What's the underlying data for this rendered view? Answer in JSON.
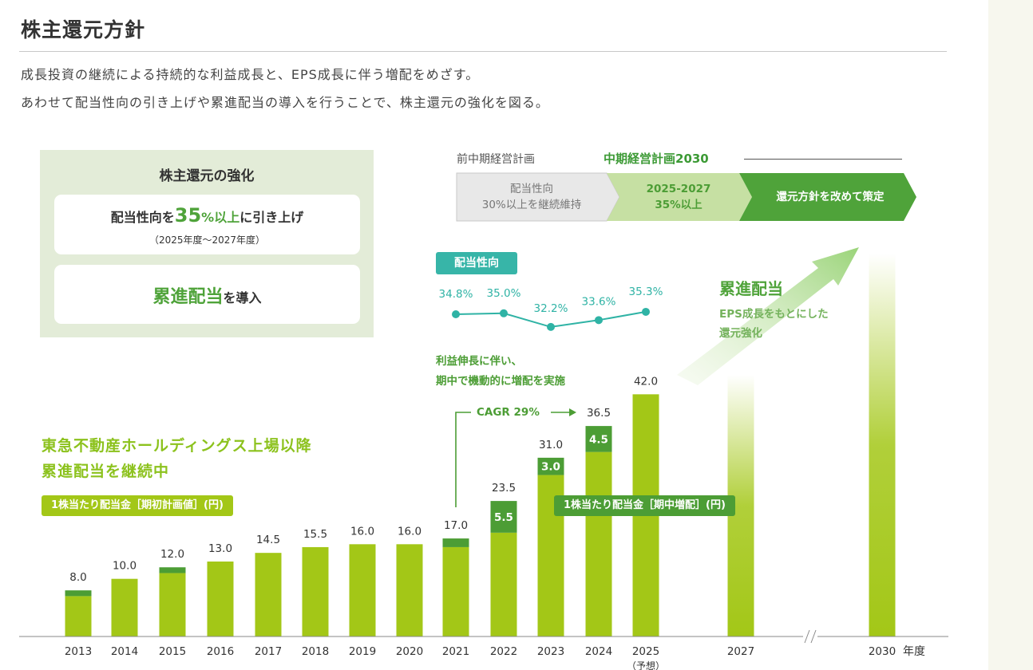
{
  "page": {
    "title": "株主還元方針",
    "lead_line1": "成長投資の継続による持続的な利益成長と、EPS成長に伴う増配をめざす。",
    "lead_line2": "あわせて配当性向の引き上げや累進配当の導入を行うことで、株主還元の強化を図る。"
  },
  "policy_box": {
    "title": "株主還元の強化",
    "card1_prefix": "配当性向を",
    "card1_value": "35",
    "card1_unit": "%以上",
    "card1_suffix": "に引き上げ",
    "card1_period": "（2025年度～2027年度）",
    "card2_highlight": "累進配当",
    "card2_suffix": "を導入"
  },
  "plans": {
    "previous_label": "前中期経営計画",
    "new_label": "中期経営計画2030",
    "step1_line1": "配当性向",
    "step1_line2": "30%以上を継続維持",
    "step2_line1": "2025-2027",
    "step2_line2": "35%以上",
    "step3_text": "還元方針を改めて策定"
  },
  "annotations": {
    "headline_line1": "東急不動産ホールディングス上場以降",
    "headline_line2": "累進配当を継続中",
    "legend_initial": "1株当たり配当金［期初計画値］(円)",
    "legend_mid": "1株当たり配当金［期中増配］(円)",
    "payout_label": "配当性向",
    "note_line1": "利益伸長に伴い、",
    "note_line2": "期中で機動的に増配を実施",
    "cagr": "CAGR 29%",
    "right_head": "累進配当",
    "right_sub_line1": "EPS成長をもとにした",
    "right_sub_line2": "還元強化",
    "year_unit": "年度"
  },
  "colors": {
    "initial_bar": "#a3c717",
    "mid_increase": "#4c9d35",
    "payout_line": "#2fb3a5",
    "accent_green": "#4fa33a"
  },
  "chart_data": {
    "type": "bar",
    "categories": [
      "2013",
      "2014",
      "2015",
      "2016",
      "2017",
      "2018",
      "2019",
      "2020",
      "2021",
      "2022",
      "2023",
      "2024",
      "2025\n（予想）",
      "2027",
      "2030"
    ],
    "series": [
      {
        "name": "1株当たり配当金［期初計画値］(円)",
        "values": [
          7.0,
          10.0,
          11.0,
          13.0,
          14.5,
          15.5,
          16.0,
          16.0,
          15.5,
          18.0,
          28.0,
          32.0,
          42.0,
          null,
          null
        ]
      },
      {
        "name": "1株当たり配当金［期中増配］(円)",
        "values": [
          1.0,
          0,
          1.0,
          0,
          0,
          0,
          0,
          0,
          1.5,
          5.5,
          3.0,
          4.5,
          0,
          null,
          null
        ]
      }
    ],
    "totals": [
      "8.0",
      "10.0",
      "12.0",
      "13.0",
      "14.5",
      "15.5",
      "16.0",
      "16.0",
      "17.0",
      "23.5",
      "31.0",
      "36.5",
      "42.0"
    ],
    "increase_labels": [
      {
        "category": "2022",
        "label": "5.5"
      },
      {
        "category": "2023",
        "label": "3.0"
      },
      {
        "category": "2024",
        "label": "4.5"
      }
    ],
    "payout_ratio": {
      "name": "配当性向",
      "categories": [
        "2021",
        "2022",
        "2023",
        "2024",
        "2025"
      ],
      "values": [
        34.8,
        35.0,
        32.2,
        33.6,
        35.3
      ],
      "labels": [
        "34.8%",
        "35.0%",
        "32.2%",
        "33.6%",
        "35.3%"
      ]
    },
    "future_bars": [
      "2027",
      "2030"
    ],
    "axis_break": "2027-2030",
    "xlabel": "年度",
    "ylabel": "",
    "ylim": [
      0,
      55
    ],
    "grid": false,
    "legend_placement": "inline"
  }
}
